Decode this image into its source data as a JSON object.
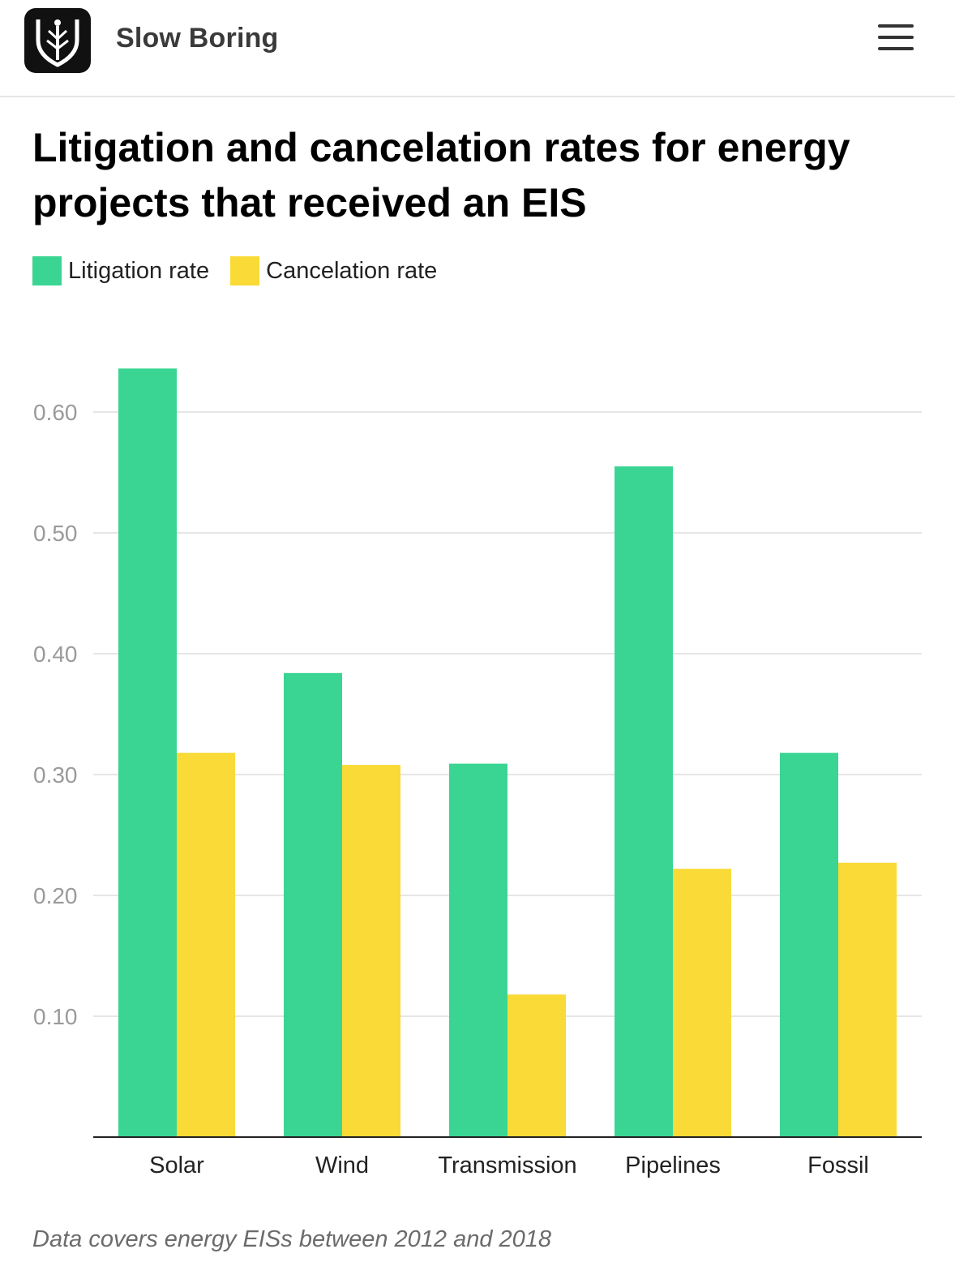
{
  "header": {
    "publication": "Slow Boring",
    "logo_icon": "slow-boring-logo-icon",
    "menu_icon": "hamburger-menu-icon"
  },
  "colors": {
    "litigation": "#3ad592",
    "cancelation": "#f9da36",
    "grid": "#e6e6e6",
    "axis": "#222222"
  },
  "chart_data": {
    "type": "bar",
    "title": "Litigation and cancelation rates for energy projects that received an EIS",
    "categories": [
      "Solar",
      "Wind",
      "Transmission",
      "Pipelines",
      "Fossil"
    ],
    "series": [
      {
        "name": "Litigation rate",
        "values": [
          0.636,
          0.384,
          0.309,
          0.555,
          0.318
        ]
      },
      {
        "name": "Cancelation rate",
        "values": [
          0.318,
          0.308,
          0.118,
          0.222,
          0.227
        ]
      }
    ],
    "yticks": [
      "0.10",
      "0.20",
      "0.30",
      "0.40",
      "0.50",
      "0.60"
    ],
    "ylim": [
      0,
      0.65
    ],
    "grid": true,
    "legend_position": "top-left",
    "xlabel": "",
    "ylabel": ""
  },
  "note": "Data covers energy EISs between 2012 and 2018"
}
